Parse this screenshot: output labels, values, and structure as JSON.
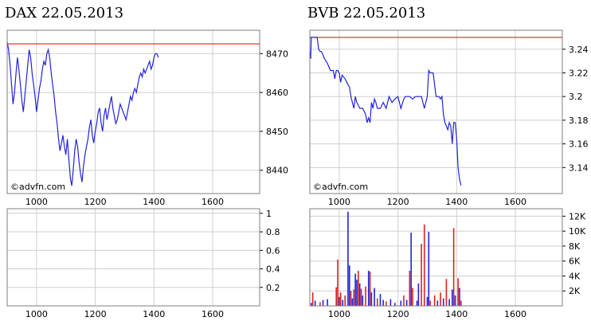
{
  "titles": {
    "left": "DAX 22.05.2013",
    "right": "BVB 22.05.2013"
  },
  "watermark": "©advfn.com",
  "colors": {
    "price": "#2222dd",
    "reference": "#dd2222",
    "grid": "#cfcfcf",
    "frame": "#7f7f7f",
    "vol_up": "#2222dd",
    "vol_down": "#dd2222"
  },
  "chart_data": [
    {
      "id": "dax-price",
      "type": "line",
      "title": "DAX 22.05.2013",
      "x_ticks": [
        1000,
        1200,
        1400,
        1600
      ],
      "x_tick_labels": [
        "1000",
        "1200",
        "1400",
        "1600"
      ],
      "xlim": [
        900,
        1760
      ],
      "y_ticks": [
        8440,
        8450,
        8460,
        8470
      ],
      "y_tick_labels": [
        "8440",
        "8450",
        "8460",
        "8470"
      ],
      "ylim": [
        8434,
        8476
      ],
      "grid": true,
      "reference_line": 8472.5,
      "x": [
        900,
        905,
        910,
        915,
        920,
        925,
        930,
        935,
        940,
        945,
        950,
        955,
        960,
        965,
        970,
        975,
        980,
        985,
        990,
        995,
        1000,
        1005,
        1010,
        1015,
        1020,
        1025,
        1030,
        1035,
        1040,
        1045,
        1050,
        1055,
        1060,
        1065,
        1070,
        1075,
        1080,
        1085,
        1090,
        1095,
        1100,
        1105,
        1110,
        1115,
        1120,
        1125,
        1130,
        1135,
        1140,
        1145,
        1150,
        1155,
        1160,
        1165,
        1170,
        1175,
        1180,
        1185,
        1190,
        1195,
        1200,
        1205,
        1210,
        1215,
        1220,
        1225,
        1230,
        1235,
        1240,
        1245,
        1250,
        1255,
        1260,
        1265,
        1270,
        1275,
        1280,
        1285,
        1290,
        1295,
        1300,
        1305,
        1310,
        1315,
        1320,
        1325,
        1330,
        1335,
        1340,
        1345,
        1350,
        1355,
        1360,
        1365,
        1370,
        1375,
        1380,
        1385,
        1390,
        1395,
        1400,
        1405,
        1410,
        1415
      ],
      "y": [
        8473,
        8471,
        8467,
        8462,
        8457,
        8460,
        8465,
        8469,
        8466,
        8462,
        8458,
        8455,
        8459,
        8463,
        8467,
        8471,
        8469,
        8465,
        8462,
        8459,
        8455,
        8458,
        8461,
        8463,
        8466,
        8468,
        8467,
        8470,
        8471,
        8469,
        8465,
        8462,
        8459,
        8455,
        8452,
        8448,
        8445,
        8447,
        8449,
        8446,
        8444,
        8448,
        8443,
        8438,
        8436,
        8440,
        8445,
        8448,
        8446,
        8442,
        8439,
        8437,
        8441,
        8444,
        8446,
        8448,
        8451,
        8453,
        8449,
        8447,
        8450,
        8452,
        8455,
        8456,
        8452,
        8450,
        8454,
        8456,
        8453,
        8455,
        8457,
        8459,
        8456,
        8454,
        8452,
        8453,
        8455,
        8457,
        8456,
        8455,
        8454,
        8453,
        8455,
        8457,
        8459,
        8458,
        8460,
        8461,
        8460,
        8462,
        8464,
        8465,
        8464,
        8466,
        8465,
        8466,
        8467,
        8468,
        8466,
        8467,
        8469,
        8470,
        8470,
        8469
      ]
    },
    {
      "id": "dax-volume",
      "type": "bar",
      "x_ticks": [
        1000,
        1200,
        1400,
        1600
      ],
      "x_tick_labels": [
        "1000",
        "1200",
        "1400",
        "1600"
      ],
      "xlim": [
        900,
        1760
      ],
      "y_ticks": [
        0.2,
        0.4,
        0.6,
        0.8,
        1
      ],
      "y_tick_labels": [
        "0.2",
        "0.4",
        "0.6",
        "0.8",
        "1"
      ],
      "ylim": [
        0,
        1.05
      ],
      "grid": true,
      "values": []
    },
    {
      "id": "bvb-price",
      "type": "line",
      "title": "BVB 22.05.2013",
      "x_ticks": [
        1000,
        1200,
        1400,
        1600
      ],
      "x_tick_labels": [
        "1000",
        "1200",
        "1400",
        "1600"
      ],
      "xlim": [
        900,
        1760
      ],
      "y_ticks": [
        3.14,
        3.16,
        3.18,
        3.2,
        3.22,
        3.24
      ],
      "y_tick_labels": [
        "3.14",
        "3.16",
        "3.18",
        "3.2",
        "3.22",
        "3.24"
      ],
      "ylim": [
        3.118,
        3.256
      ],
      "grid": true,
      "reference_line": 3.25,
      "x": [
        900,
        903,
        905,
        910,
        915,
        925,
        930,
        935,
        940,
        950,
        960,
        970,
        980,
        985,
        990,
        995,
        1000,
        1005,
        1010,
        1020,
        1030,
        1035,
        1040,
        1045,
        1050,
        1055,
        1060,
        1070,
        1080,
        1090,
        1095,
        1100,
        1105,
        1110,
        1115,
        1120,
        1125,
        1130,
        1140,
        1150,
        1160,
        1170,
        1180,
        1190,
        1200,
        1210,
        1220,
        1225,
        1230,
        1240,
        1250,
        1260,
        1270,
        1280,
        1290,
        1300,
        1305,
        1310,
        1320,
        1330,
        1340,
        1345,
        1350,
        1355,
        1360,
        1365,
        1370,
        1375,
        1380,
        1385,
        1390,
        1395,
        1400,
        1405,
        1410,
        1415
      ],
      "y": [
        3.238,
        3.232,
        3.25,
        3.25,
        3.25,
        3.25,
        3.24,
        3.238,
        3.238,
        3.232,
        3.228,
        3.222,
        3.222,
        3.215,
        3.222,
        3.222,
        3.22,
        3.212,
        3.218,
        3.215,
        3.21,
        3.208,
        3.2,
        3.195,
        3.19,
        3.2,
        3.195,
        3.19,
        3.19,
        3.185,
        3.178,
        3.182,
        3.178,
        3.195,
        3.19,
        3.198,
        3.195,
        3.19,
        3.19,
        3.195,
        3.19,
        3.2,
        3.195,
        3.198,
        3.2,
        3.19,
        3.198,
        3.2,
        3.2,
        3.2,
        3.198,
        3.2,
        3.2,
        3.2,
        3.19,
        3.2,
        3.222,
        3.22,
        3.22,
        3.2,
        3.2,
        3.198,
        3.2,
        3.185,
        3.178,
        3.175,
        3.172,
        3.178,
        3.175,
        3.16,
        3.178,
        3.178,
        3.165,
        3.14,
        3.13,
        3.125
      ]
    },
    {
      "id": "bvb-volume",
      "type": "bar",
      "x_ticks": [
        1000,
        1200,
        1400,
        1600
      ],
      "x_tick_labels": [
        "1000",
        "1200",
        "1400",
        "1600"
      ],
      "xlim": [
        900,
        1760
      ],
      "y_ticks": [
        2000,
        4000,
        6000,
        8000,
        10000,
        12000
      ],
      "y_tick_labels": [
        "2K",
        "4K",
        "6K",
        "8K",
        "10K",
        "12K"
      ],
      "ylim": [
        0,
        13000
      ],
      "grid": true,
      "bars": [
        {
          "x": 905,
          "v": 400,
          "c": "up"
        },
        {
          "x": 910,
          "v": 1800,
          "c": "down"
        },
        {
          "x": 918,
          "v": 700,
          "c": "up"
        },
        {
          "x": 935,
          "v": 500,
          "c": "down"
        },
        {
          "x": 945,
          "v": 800,
          "c": "up"
        },
        {
          "x": 960,
          "v": 900,
          "c": "up"
        },
        {
          "x": 990,
          "v": 2500,
          "c": "down"
        },
        {
          "x": 995,
          "v": 6200,
          "c": "down"
        },
        {
          "x": 1000,
          "v": 1200,
          "c": "up"
        },
        {
          "x": 1005,
          "v": 1800,
          "c": "down"
        },
        {
          "x": 1012,
          "v": 800,
          "c": "up"
        },
        {
          "x": 1020,
          "v": 1400,
          "c": "down"
        },
        {
          "x": 1030,
          "v": 12600,
          "c": "up"
        },
        {
          "x": 1035,
          "v": 5400,
          "c": "up"
        },
        {
          "x": 1040,
          "v": 2000,
          "c": "down"
        },
        {
          "x": 1045,
          "v": 1000,
          "c": "up"
        },
        {
          "x": 1050,
          "v": 2200,
          "c": "down"
        },
        {
          "x": 1055,
          "v": 4300,
          "c": "up"
        },
        {
          "x": 1060,
          "v": 3500,
          "c": "up"
        },
        {
          "x": 1065,
          "v": 4700,
          "c": "down"
        },
        {
          "x": 1070,
          "v": 3000,
          "c": "up"
        },
        {
          "x": 1075,
          "v": 2300,
          "c": "down"
        },
        {
          "x": 1080,
          "v": 1400,
          "c": "up"
        },
        {
          "x": 1090,
          "v": 2600,
          "c": "down"
        },
        {
          "x": 1100,
          "v": 4700,
          "c": "up"
        },
        {
          "x": 1105,
          "v": 4600,
          "c": "down"
        },
        {
          "x": 1110,
          "v": 1800,
          "c": "up"
        },
        {
          "x": 1120,
          "v": 2400,
          "c": "up"
        },
        {
          "x": 1130,
          "v": 1000,
          "c": "down"
        },
        {
          "x": 1140,
          "v": 1600,
          "c": "up"
        },
        {
          "x": 1150,
          "v": 800,
          "c": "up"
        },
        {
          "x": 1160,
          "v": 600,
          "c": "down"
        },
        {
          "x": 1175,
          "v": 900,
          "c": "up"
        },
        {
          "x": 1190,
          "v": 400,
          "c": "up"
        },
        {
          "x": 1210,
          "v": 700,
          "c": "up"
        },
        {
          "x": 1220,
          "v": 1400,
          "c": "down"
        },
        {
          "x": 1230,
          "v": 800,
          "c": "up"
        },
        {
          "x": 1240,
          "v": 4700,
          "c": "down"
        },
        {
          "x": 1245,
          "v": 9800,
          "c": "up"
        },
        {
          "x": 1250,
          "v": 2400,
          "c": "down"
        },
        {
          "x": 1265,
          "v": 700,
          "c": "up"
        },
        {
          "x": 1270,
          "v": 3000,
          "c": "up"
        },
        {
          "x": 1280,
          "v": 8300,
          "c": "down"
        },
        {
          "x": 1290,
          "v": 10900,
          "c": "down"
        },
        {
          "x": 1300,
          "v": 1200,
          "c": "up"
        },
        {
          "x": 1305,
          "v": 9900,
          "c": "up"
        },
        {
          "x": 1310,
          "v": 700,
          "c": "down"
        },
        {
          "x": 1325,
          "v": 1400,
          "c": "down"
        },
        {
          "x": 1335,
          "v": 700,
          "c": "up"
        },
        {
          "x": 1345,
          "v": 1800,
          "c": "down"
        },
        {
          "x": 1355,
          "v": 1000,
          "c": "up"
        },
        {
          "x": 1365,
          "v": 3600,
          "c": "down"
        },
        {
          "x": 1375,
          "v": 900,
          "c": "up"
        },
        {
          "x": 1385,
          "v": 2200,
          "c": "up"
        },
        {
          "x": 1390,
          "v": 10400,
          "c": "down"
        },
        {
          "x": 1395,
          "v": 1400,
          "c": "up"
        },
        {
          "x": 1405,
          "v": 3700,
          "c": "down"
        },
        {
          "x": 1410,
          "v": 2400,
          "c": "up"
        },
        {
          "x": 1415,
          "v": 700,
          "c": "down"
        }
      ]
    }
  ]
}
